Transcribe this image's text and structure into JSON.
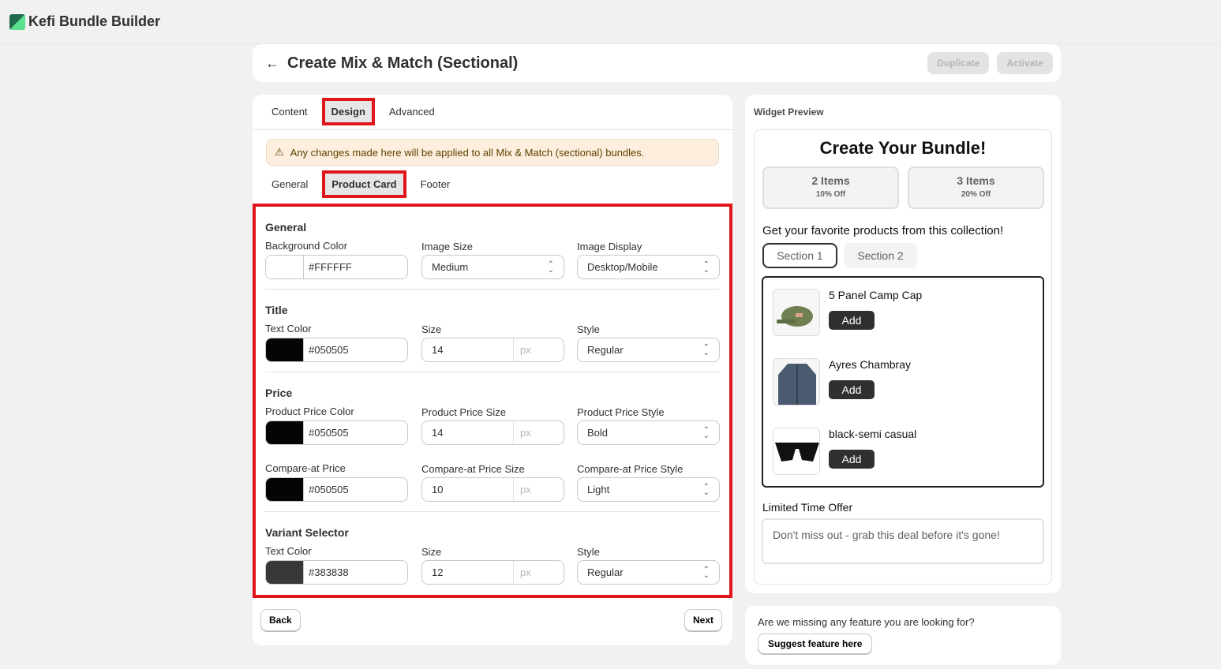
{
  "app": {
    "title": "Kefi Bundle Builder"
  },
  "header": {
    "title": "Create Mix & Match (Sectional)",
    "duplicate": "Duplicate",
    "activate": "Activate"
  },
  "tabs": [
    "Content",
    "Design",
    "Advanced"
  ],
  "banner": "Any changes made here will be applied to all Mix & Match (sectional) bundles.",
  "subtabs": [
    "General",
    "Product Card",
    "Footer"
  ],
  "form": {
    "general": {
      "heading": "General",
      "bg_label": "Background Color",
      "bg_value": "#FFFFFF",
      "bg_swatch": "#FFFFFF",
      "size_label": "Image Size",
      "size_value": "Medium",
      "display_label": "Image Display",
      "display_value": "Desktop/Mobile"
    },
    "title": {
      "heading": "Title",
      "color_label": "Text Color",
      "color_value": "#050505",
      "swatch": "#050505",
      "size_label": "Size",
      "size_value": "14",
      "unit": "px",
      "style_label": "Style",
      "style_value": "Regular"
    },
    "price": {
      "heading": "Price",
      "color_label": "Product Price Color",
      "color_value": "#050505",
      "swatch": "#050505",
      "size_label": "Product Price Size",
      "size_value": "14",
      "unit": "px",
      "style_label": "Product Price Style",
      "style_value": "Bold"
    },
    "compare": {
      "color_label": "Compare-at Price",
      "color_value": "#050505",
      "swatch": "#050505",
      "size_label": "Compare-at Price Size",
      "size_value": "10",
      "unit": "px",
      "style_label": "Compare-at Price Style",
      "style_value": "Light"
    },
    "variant": {
      "heading": "Variant Selector",
      "color_label": "Text Color",
      "color_value": "#383838",
      "swatch": "#383838",
      "size_label": "Size",
      "size_value": "12",
      "unit": "px",
      "style_label": "Style",
      "style_value": "Regular"
    }
  },
  "nav": {
    "back": "Back",
    "next": "Next"
  },
  "preview": {
    "label": "Widget Preview",
    "title": "Create Your Bundle!",
    "tiers": [
      {
        "items": "2 Items",
        "discount": "10% Off"
      },
      {
        "items": "3 Items",
        "discount": "20% Off"
      }
    ],
    "collection_text": "Get your favorite products from this collection!",
    "sections": [
      "Section 1",
      "Section 2"
    ],
    "products": [
      {
        "name": "5 Panel Camp Cap",
        "add": "Add"
      },
      {
        "name": "Ayres Chambray",
        "add": "Add"
      },
      {
        "name": "black-semi casual",
        "add": "Add"
      }
    ],
    "offer_label": "Limited Time Offer",
    "offer_text": "Don't miss out - grab this deal before it's gone!"
  },
  "feedback": {
    "question": "Are we missing any feature you are looking for?",
    "button": "Suggest feature here"
  }
}
